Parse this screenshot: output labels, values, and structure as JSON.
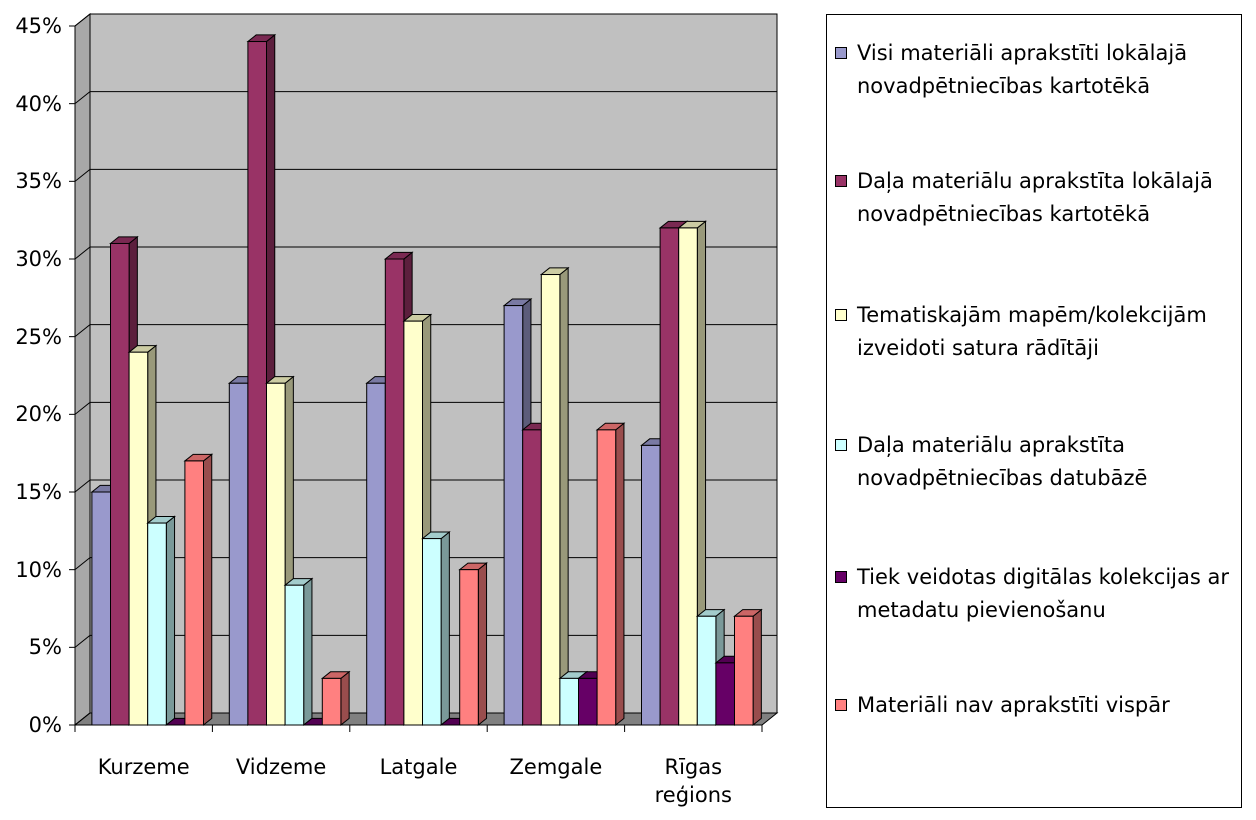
{
  "chart_data": {
    "type": "bar3d",
    "categories": [
      "Kurzeme",
      "Vidzeme",
      "Latgale",
      "Zemgale",
      "Rīgas reģions"
    ],
    "series": [
      {
        "name": "Visi materiāli aprakstīti lokālajā novadpētniecības kartotēkā",
        "color": "#9999cc",
        "values": [
          15,
          22,
          22,
          27,
          18
        ]
      },
      {
        "name": "Daļa materiālu aprakstīta lokālajā novadpētniecības kartotēkā",
        "color": "#993366",
        "values": [
          31,
          44,
          30,
          19,
          32
        ]
      },
      {
        "name": "Tematiskajām mapēm/kolekcijām izveidoti satura rādītāji",
        "color": "#ffffcc",
        "values": [
          24,
          22,
          26,
          29,
          32
        ]
      },
      {
        "name": "Daļa materiālu aprakstīta novadpētniecības datubāzē",
        "color": "#ccffff",
        "values": [
          13,
          9,
          12,
          3,
          7
        ]
      },
      {
        "name": "Tiek veidotas digitālas kolekcijas ar metadatu pievienošanu",
        "color": "#660066",
        "values": [
          0,
          0,
          0,
          3,
          4
        ]
      },
      {
        "name": "Materiāli nav aprakstīti vispār",
        "color": "#ff8080",
        "values": [
          17,
          3,
          10,
          19,
          7
        ]
      }
    ],
    "ylim": [
      0,
      45
    ],
    "yticks": [
      {
        "value": 0,
        "label": "0%"
      },
      {
        "value": 5,
        "label": "5%"
      },
      {
        "value": 10,
        "label": "10%"
      },
      {
        "value": 15,
        "label": "15%"
      },
      {
        "value": 20,
        "label": "20%"
      },
      {
        "value": 25,
        "label": "25%"
      },
      {
        "value": 30,
        "label": "30%"
      },
      {
        "value": 35,
        "label": "35%"
      },
      {
        "value": 40,
        "label": "40%"
      },
      {
        "value": 45,
        "label": "45%"
      }
    ],
    "grid": true,
    "legend": "right"
  }
}
